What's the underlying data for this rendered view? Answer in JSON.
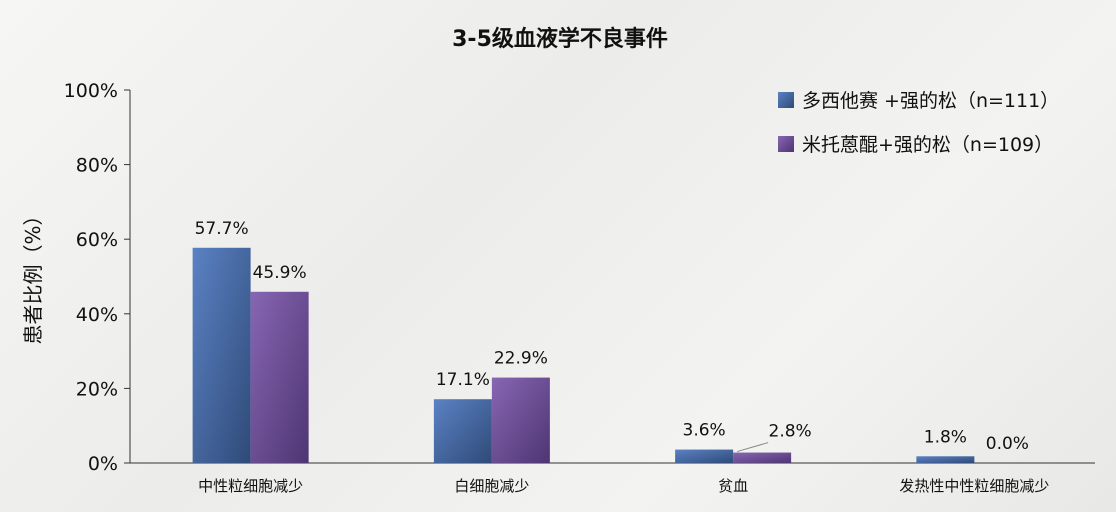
{
  "chart_data": {
    "type": "bar",
    "title": "3-5级血液学不良事件",
    "ylabel": "患者比例（%）",
    "xlabel": "",
    "ylim": [
      0,
      100
    ],
    "yticks": [
      {
        "value": 0,
        "label": "0%"
      },
      {
        "value": 20,
        "label": "20%"
      },
      {
        "value": 40,
        "label": "40%"
      },
      {
        "value": 60,
        "label": "60%"
      },
      {
        "value": 80,
        "label": "80%"
      },
      {
        "value": 100,
        "label": "100%"
      }
    ],
    "categories": [
      "中性粒细胞减少",
      "白细胞减少",
      "贫血",
      "发热性中性粒细胞减少"
    ],
    "series": [
      {
        "name": "多西他赛 +强的松（n=111）",
        "values": [
          57.7,
          17.1,
          3.6,
          1.8
        ],
        "labels": [
          "57.7%",
          "17.1%",
          "3.6%",
          "1.8%"
        ],
        "color": "#4a6fa8"
      },
      {
        "name": "米托蒽醌+强的松（n=109）",
        "values": [
          45.9,
          22.9,
          2.8,
          0.0
        ],
        "labels": [
          "45.9%",
          "22.9%",
          "2.8%",
          "0.0%"
        ],
        "color": "#6a4c94"
      }
    ],
    "legend_position": "top-right",
    "grid": false
  }
}
